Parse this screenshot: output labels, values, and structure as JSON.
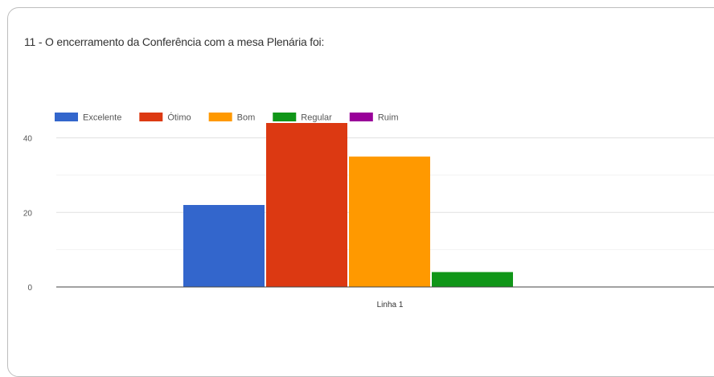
{
  "chart_data": {
    "type": "bar",
    "title": "11 - O encerramento da Conferência  com a mesa Plenária foi:",
    "categories": [
      "Linha 1"
    ],
    "series": [
      {
        "name": "Excelente",
        "color": "#3366cc",
        "values": [
          22
        ]
      },
      {
        "name": "Ótimo",
        "color": "#dc3912",
        "values": [
          44
        ]
      },
      {
        "name": "Bom",
        "color": "#ff9900",
        "values": [
          35
        ]
      },
      {
        "name": "Regular",
        "color": "#109618",
        "values": [
          4
        ]
      },
      {
        "name": "Ruim",
        "color": "#990099",
        "values": [
          0
        ]
      }
    ],
    "ylim": [
      0,
      44
    ],
    "yticks": [
      0,
      20,
      40
    ],
    "xlabel": "",
    "ylabel": "",
    "legend": "top-left",
    "grid": true
  }
}
